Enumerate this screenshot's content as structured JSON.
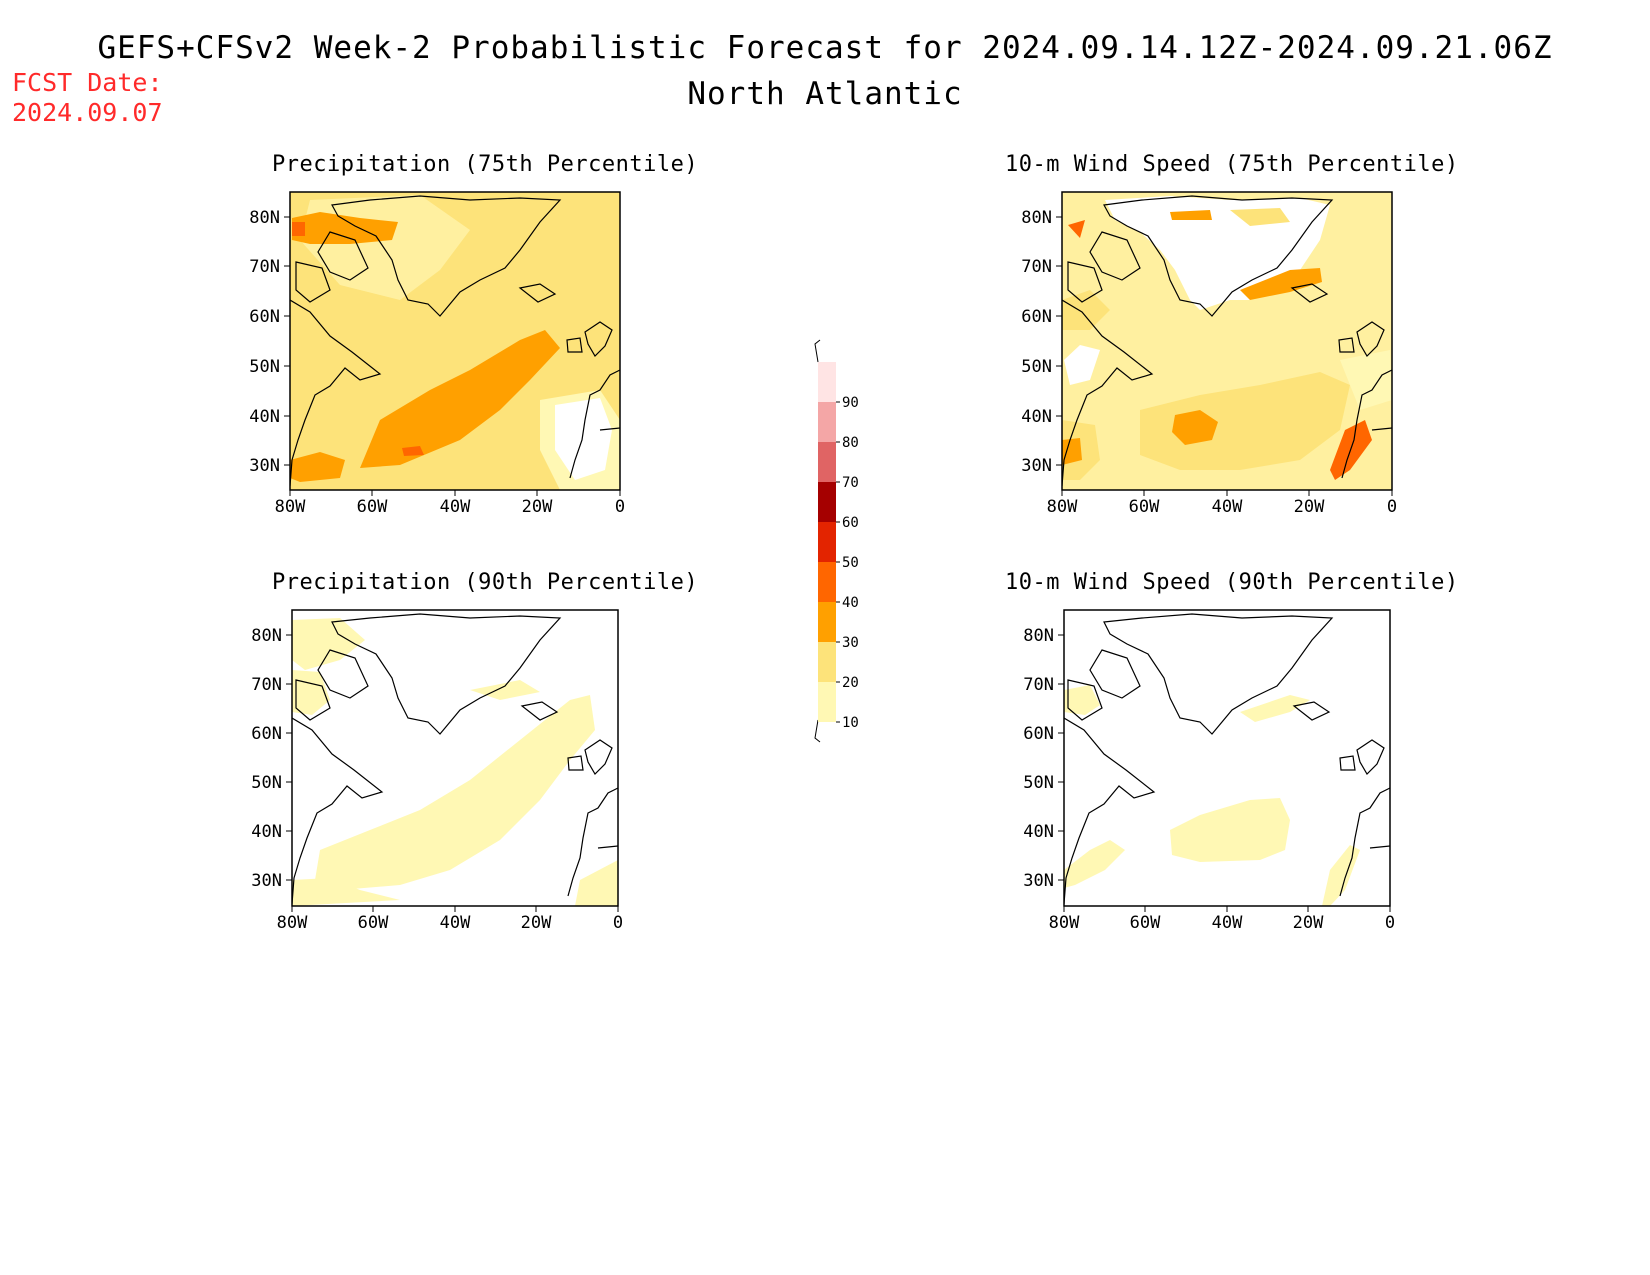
{
  "header": {
    "title": "GEFS+CFSv2 Week-2 Probabilistic Forecast for 2024.09.14.12Z-2024.09.21.06Z",
    "region": "North Atlantic",
    "fcst_label": "FCST Date:",
    "fcst_date": "2024.09.07"
  },
  "panels": [
    {
      "title": "Precipitation (75th Percentile)"
    },
    {
      "title": "10-m Wind Speed (75th Percentile)"
    },
    {
      "title": "Precipitation (90th Percentile)"
    },
    {
      "title": "10-m Wind Speed (90th Percentile)"
    }
  ],
  "axes": {
    "lon_labels": [
      "80W",
      "60W",
      "40W",
      "20W",
      "0"
    ],
    "lat_labels": [
      "80N",
      "70N",
      "60N",
      "50N",
      "40N",
      "30N"
    ]
  },
  "colorbar": {
    "levels": [
      "10",
      "20",
      "30",
      "40",
      "50",
      "60",
      "70",
      "80",
      "90"
    ],
    "colors": [
      "#fff8b4",
      "#fde37a",
      "#ffa000",
      "#ff6600",
      "#e32400",
      "#a50000",
      "#e06464",
      "#f4a6a6",
      "#ffe4e4"
    ]
  }
}
